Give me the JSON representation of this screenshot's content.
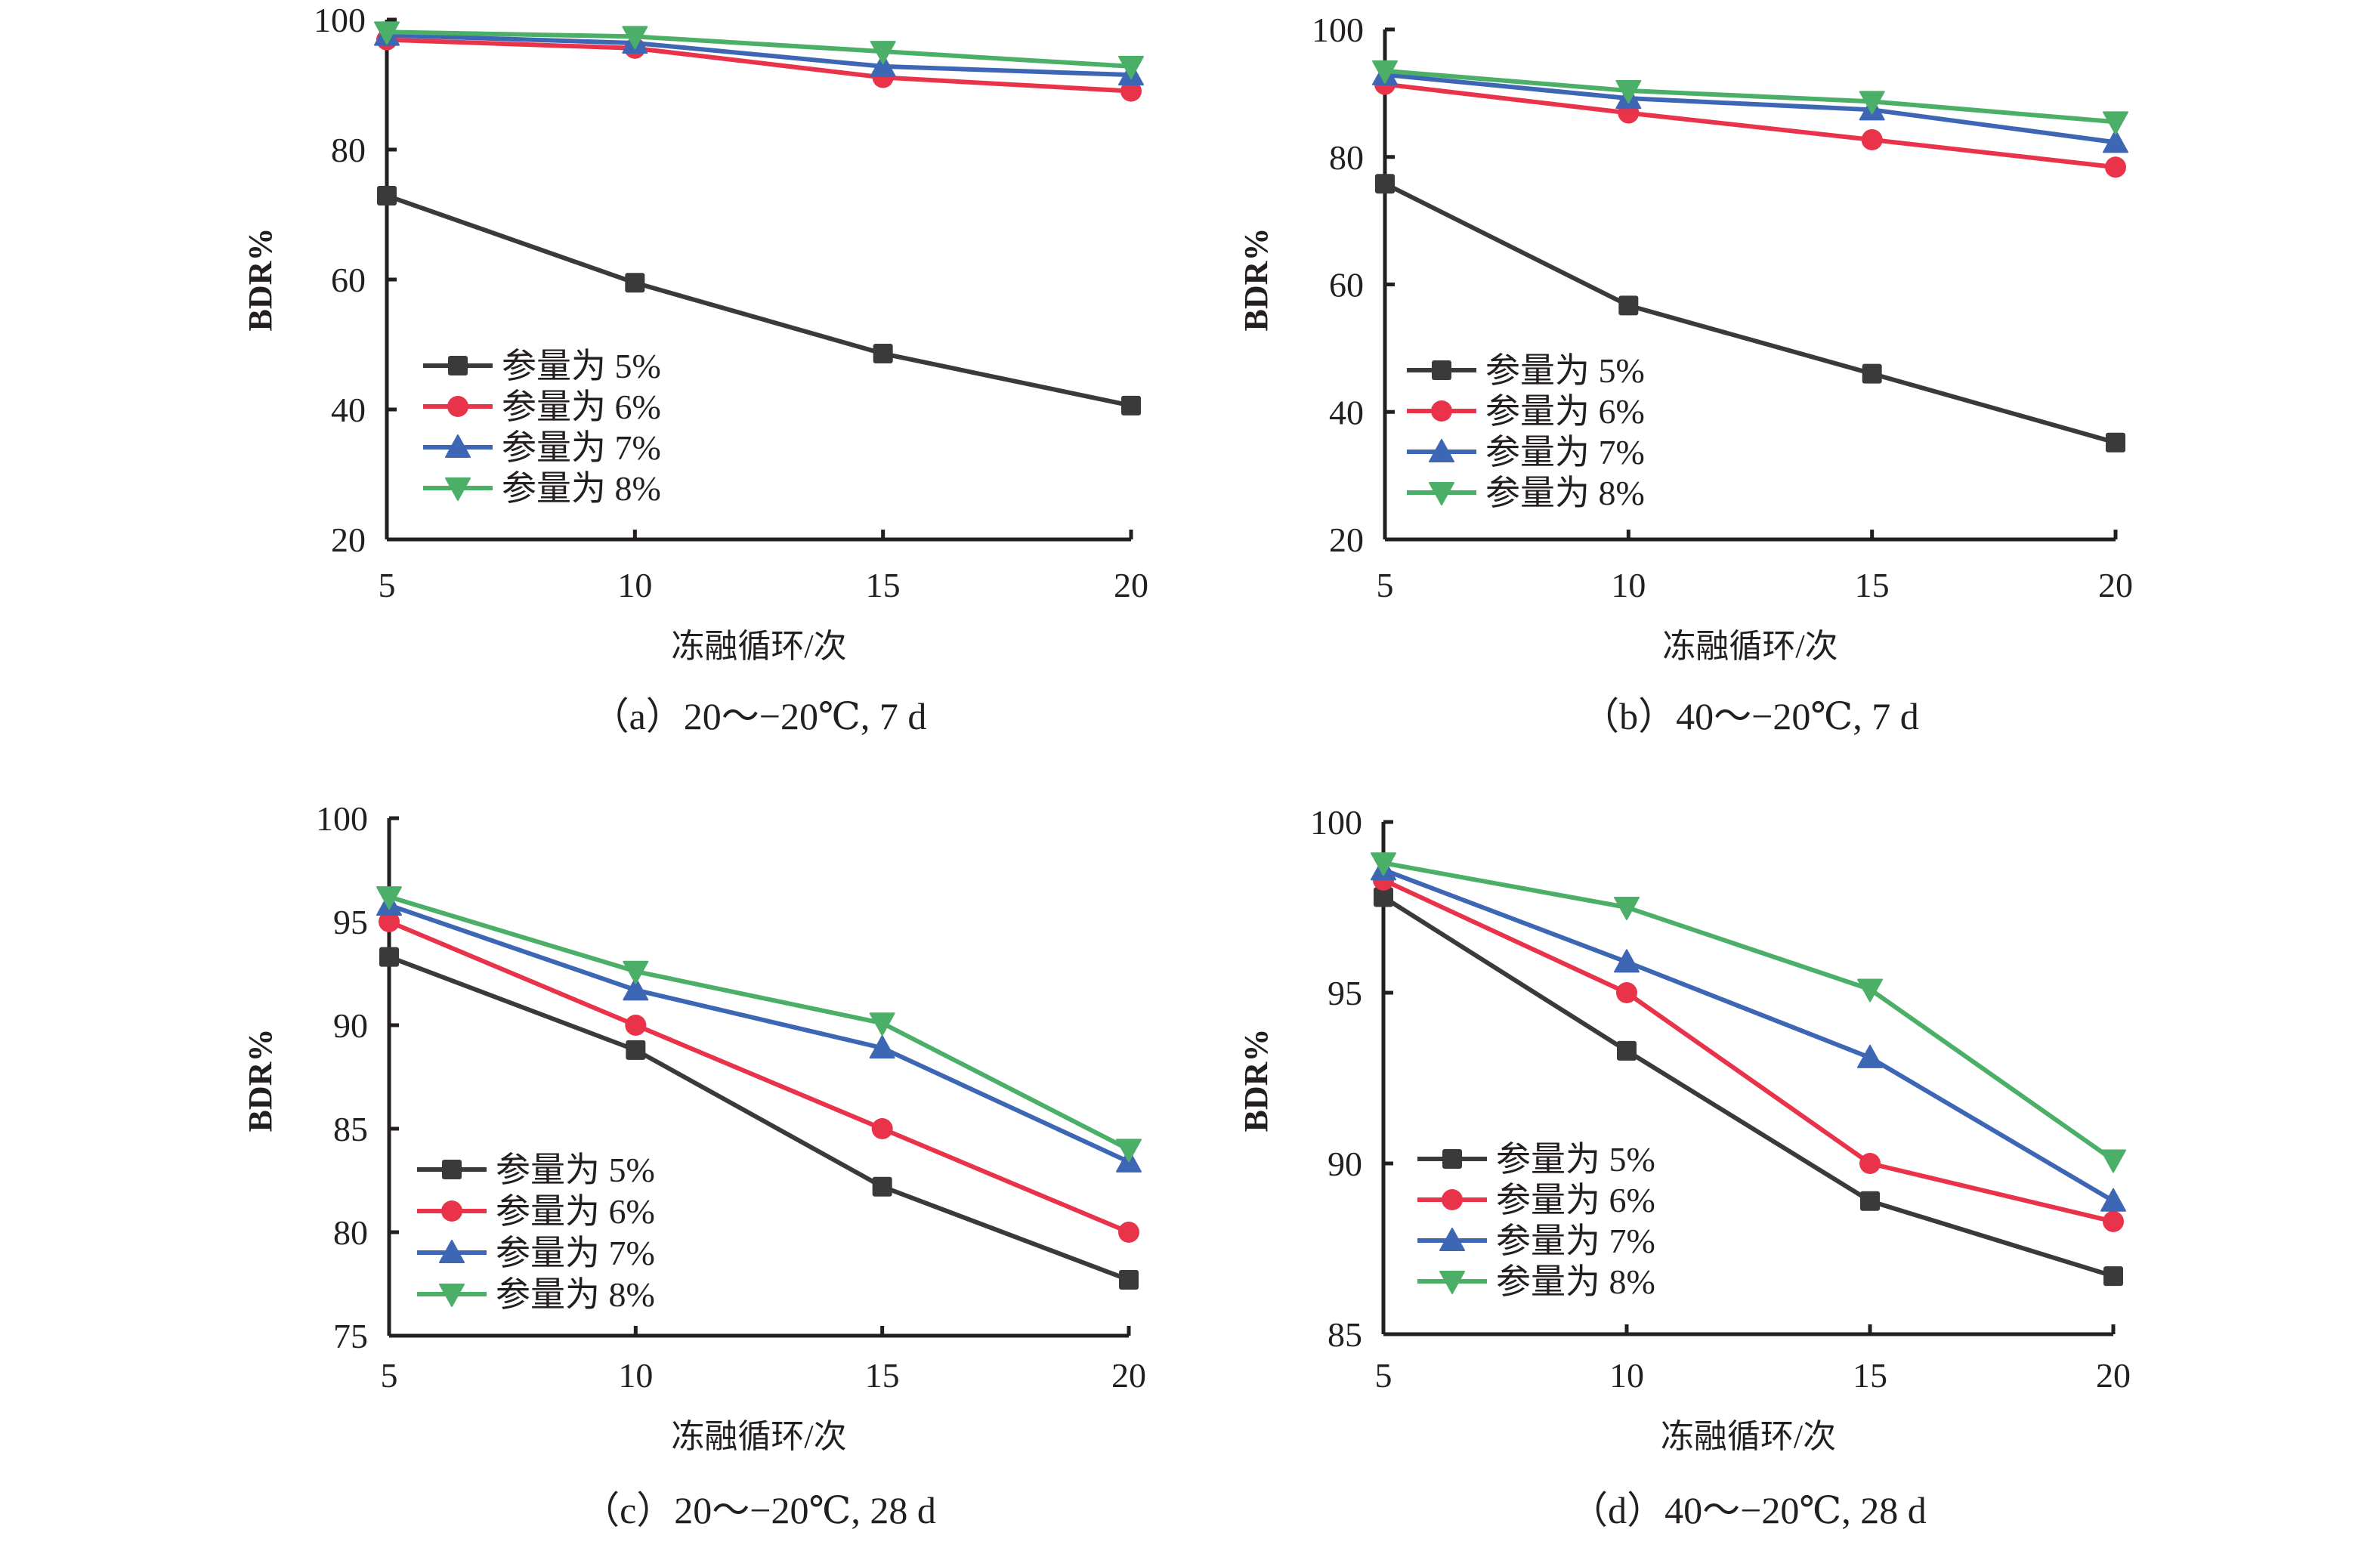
{
  "figure": {
    "series_styles": [
      {
        "name": "参量为 5%",
        "color": "#3a3a3a",
        "marker": "square"
      },
      {
        "name": "参量为 6%",
        "color": "#e8334a",
        "marker": "circle"
      },
      {
        "name": "参量为 7%",
        "color": "#3d67b5",
        "marker": "triangle-up"
      },
      {
        "name": "参量为 8%",
        "color": "#4caf68",
        "marker": "triangle-down"
      }
    ]
  },
  "chart_data": [
    {
      "type": "line",
      "panel": "a",
      "caption": "（a）20～−20℃, 7 d",
      "xlabel": "冻融循环/次",
      "ylabel": "BDR%",
      "x": [
        5,
        10,
        15,
        20
      ],
      "xticks": [
        "5",
        "10",
        "15",
        "20"
      ],
      "ylim": [
        20,
        100
      ],
      "yticks": [
        "20",
        "40",
        "60",
        "80",
        "100"
      ],
      "ytick_values": [
        20,
        40,
        60,
        80,
        100
      ],
      "legend_placement": "lower-left",
      "grid": false,
      "series": [
        {
          "name": "参量为 5%",
          "values": [
            72.9,
            59.5,
            48.6,
            40.6
          ]
        },
        {
          "name": "参量为 6%",
          "values": [
            96.9,
            95.6,
            91.1,
            89.0
          ]
        },
        {
          "name": "参量为 7%",
          "values": [
            97.6,
            96.4,
            92.8,
            91.5
          ]
        },
        {
          "name": "参量为 8%",
          "values": [
            98.1,
            97.4,
            95.1,
            92.8
          ]
        }
      ]
    },
    {
      "type": "line",
      "panel": "b",
      "caption": "（b）40～−20℃, 7 d",
      "xlabel": "冻融循环/次",
      "ylabel": "BDR%",
      "x": [
        5,
        10,
        15,
        20
      ],
      "xticks": [
        "5",
        "10",
        "15",
        "20"
      ],
      "ylim": [
        20,
        100
      ],
      "yticks": [
        "20",
        "40",
        "60",
        "80",
        "100"
      ],
      "ytick_values": [
        20,
        40,
        60,
        80,
        100
      ],
      "legend_placement": "lower-left",
      "grid": false,
      "series": [
        {
          "name": "参量为 5%",
          "values": [
            75.8,
            56.7,
            46.0,
            35.2
          ]
        },
        {
          "name": "参量为 6%",
          "values": [
            91.4,
            86.9,
            82.7,
            78.4
          ]
        },
        {
          "name": "参量为 7%",
          "values": [
            92.9,
            89.2,
            87.4,
            82.3
          ]
        },
        {
          "name": "参量为 8%",
          "values": [
            93.5,
            90.4,
            88.7,
            85.5
          ]
        }
      ]
    },
    {
      "type": "line",
      "panel": "c",
      "caption": "（c）20～−20℃, 28 d",
      "xlabel": "冻融循环/次",
      "ylabel": "BDR%",
      "x": [
        5,
        10,
        15,
        20
      ],
      "xticks": [
        "5",
        "10",
        "15",
        "20"
      ],
      "ylim": [
        75,
        100
      ],
      "yticks": [
        "75",
        "80",
        "85",
        "90",
        "95",
        "100"
      ],
      "ytick_values": [
        75,
        80,
        85,
        90,
        95,
        100
      ],
      "legend_placement": "lower-left",
      "grid": false,
      "series": [
        {
          "name": "参量为 5%",
          "values": [
            93.3,
            88.8,
            82.2,
            77.7
          ]
        },
        {
          "name": "参量为 6%",
          "values": [
            95.0,
            90.0,
            85.0,
            80.0
          ]
        },
        {
          "name": "参量为 7%",
          "values": [
            95.8,
            91.7,
            88.9,
            83.4
          ]
        },
        {
          "name": "参量为 8%",
          "values": [
            96.2,
            92.6,
            90.1,
            84.0
          ]
        }
      ]
    },
    {
      "type": "line",
      "panel": "d",
      "caption": "（d）40～−20℃, 28 d",
      "xlabel": "冻融循环/次",
      "ylabel": "BDR%",
      "x": [
        5,
        10,
        15,
        20
      ],
      "xticks": [
        "5",
        "10",
        "15",
        "20"
      ],
      "ylim": [
        85,
        100
      ],
      "yticks": [
        "85",
        "90",
        "95",
        "100"
      ],
      "ytick_values": [
        85,
        90,
        95,
        100
      ],
      "legend_placement": "lower-left",
      "grid": false,
      "series": [
        {
          "name": "参量为 5%",
          "values": [
            97.8,
            93.3,
            88.9,
            86.7
          ]
        },
        {
          "name": "参量为 6%",
          "values": [
            98.3,
            95.0,
            90.0,
            88.3
          ]
        },
        {
          "name": "参量为 7%",
          "values": [
            98.6,
            95.9,
            93.1,
            88.9
          ]
        },
        {
          "name": "参量为 8%",
          "values": [
            98.8,
            97.5,
            95.1,
            90.1
          ]
        }
      ]
    }
  ]
}
